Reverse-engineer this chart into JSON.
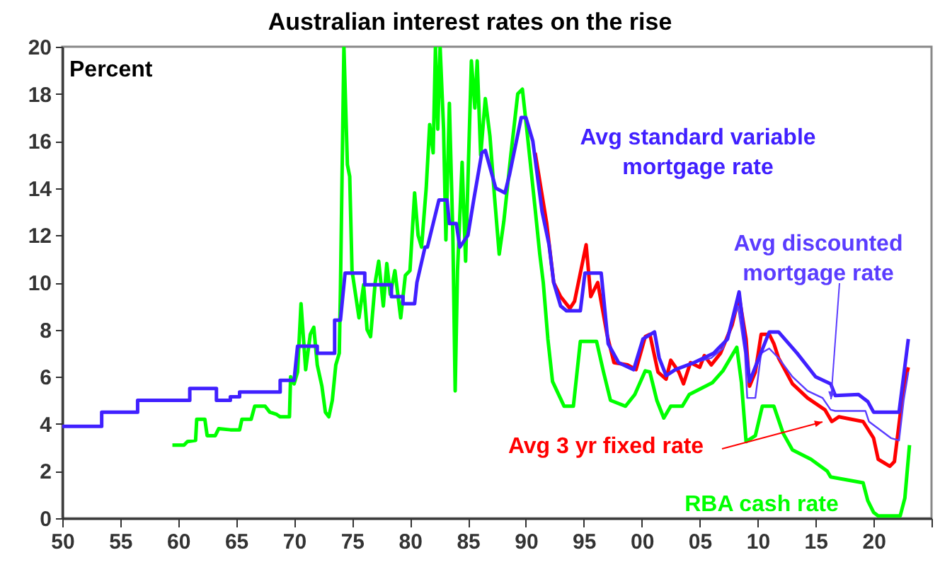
{
  "chart_data": {
    "type": "line",
    "title": "Australian interest rates on the rise",
    "ylabel": "Percent",
    "xlim": [
      1950,
      2025
    ],
    "xticks": [
      {
        "value": 1950,
        "label": "50"
      },
      {
        "value": 1955,
        "label": "55"
      },
      {
        "value": 1960,
        "label": "60"
      },
      {
        "value": 1965,
        "label": "65"
      },
      {
        "value": 1970,
        "label": "70"
      },
      {
        "value": 1975,
        "label": "75"
      },
      {
        "value": 1980,
        "label": "80"
      },
      {
        "value": 1985,
        "label": "85"
      },
      {
        "value": 1990,
        "label": "90"
      },
      {
        "value": 1995,
        "label": "95"
      },
      {
        "value": 2000,
        "label": "00"
      },
      {
        "value": 2005,
        "label": "05"
      },
      {
        "value": 2010,
        "label": "10"
      },
      {
        "value": 2015,
        "label": "15"
      },
      {
        "value": 2020,
        "label": "20"
      },
      {
        "value": 2025,
        "label": null
      }
    ],
    "ylim": [
      0,
      20
    ],
    "yticks": [
      0,
      2,
      4,
      6,
      8,
      10,
      12,
      14,
      16,
      18,
      20
    ],
    "series": [
      {
        "name": "Avg standard variable mortgage rate",
        "color": "#4020ff",
        "x": [
          1950,
          1953.4,
          1953.4,
          1956.5,
          1956.5,
          1961,
          1961,
          1963.3,
          1963.3,
          1964.5,
          1964.5,
          1965.3,
          1965.3,
          1968.8,
          1968.8,
          1970,
          1970.3,
          1972,
          1972,
          1973.5,
          1973.5,
          1974,
          1974.4,
          1976.1,
          1976.1,
          1978.4,
          1978.4,
          1979.4,
          1979.4,
          1980.4,
          1980.6,
          1981.3,
          1981.5,
          1982,
          1982.5,
          1983.2,
          1983.4,
          1984,
          1984.3,
          1985,
          1985.5,
          1986.2,
          1986.5,
          1987.4,
          1988.2,
          1988.6,
          1989.6,
          1990,
          1990.6,
          1991.4,
          1992,
          1992.4,
          1993,
          1993.5,
          1994.7,
          1995.1,
          1996.5,
          1997.1,
          1998,
          1999.3,
          2000.1,
          2001.1,
          2001.5,
          2002.1,
          2002.9,
          2004.5,
          2006.2,
          2007.4,
          2008.4,
          2009.3,
          2011,
          2011.8,
          2013.4,
          2015,
          2016.3,
          2016.7,
          2018.7,
          2019.5,
          2020,
          2022.2,
          2023
        ],
        "values": [
          3.9,
          3.9,
          4.5,
          4.5,
          5.0,
          5.0,
          5.5,
          5.5,
          5.0,
          5.0,
          5.15,
          5.15,
          5.35,
          5.35,
          5.85,
          5.85,
          7.3,
          7.3,
          7.0,
          7.0,
          8.4,
          8.4,
          10.4,
          10.4,
          9.9,
          9.9,
          9.4,
          9.4,
          9.1,
          9.1,
          10.0,
          11.5,
          11.5,
          12.5,
          13.5,
          13.5,
          12.5,
          12.5,
          11.5,
          12.0,
          13.5,
          15.5,
          15.6,
          14.0,
          13.8,
          14.6,
          17.0,
          17.0,
          16.0,
          13.0,
          11.6,
          10.0,
          9.0,
          8.8,
          8.8,
          10.4,
          10.4,
          7.4,
          6.6,
          6.3,
          7.6,
          7.9,
          6.8,
          6.05,
          6.3,
          6.6,
          7.0,
          7.6,
          9.6,
          5.8,
          7.9,
          7.9,
          7.0,
          6.0,
          5.7,
          5.2,
          5.25,
          4.95,
          4.5,
          4.5,
          7.6
        ]
      },
      {
        "name": "Avg discounted mortgage rate",
        "color": "#5a3cff",
        "x": [
          2004.5,
          2006,
          2007,
          2008.3,
          2008.9,
          2009.1,
          2009.8,
          2010.3,
          2011,
          2011.8,
          2013,
          2014.3,
          2015.6,
          2016.3,
          2016.7,
          2019.3,
          2019.6,
          2021.5,
          2022.2,
          2022.6,
          2023
        ],
        "values": [
          6.6,
          6.8,
          7.2,
          9.0,
          7.0,
          5.1,
          5.1,
          7.0,
          7.2,
          6.8,
          6.0,
          5.4,
          5.1,
          4.6,
          4.55,
          4.55,
          4.1,
          3.4,
          3.3,
          5.0,
          6.2
        ]
      },
      {
        "name": "Avg 3 yr fixed rate",
        "color": "#ff0000",
        "x": [
          1990.8,
          1991.3,
          1991.8,
          1992.4,
          1993.0,
          1993.8,
          1994.2,
          1995.2,
          1995.6,
          1996.2,
          1997.0,
          1997.6,
          1998.8,
          1999.5,
          2000.3,
          2000.7,
          2001.4,
          2002.1,
          2002.5,
          2003.2,
          2003.6,
          2004.2,
          2005.0,
          2005.4,
          2006.0,
          2006.8,
          2007.8,
          2008.4,
          2009.0,
          2009.3,
          2009.8,
          2010.3,
          2011.0,
          2011.4,
          2011.8,
          2013.0,
          2014.3,
          2015.8,
          2016.4,
          2017.0,
          2019.1,
          2020.0,
          2020.4,
          2021.4,
          2021.8,
          2022.6,
          2023.0
        ],
        "values": [
          15.5,
          14.0,
          12.5,
          10.0,
          9.4,
          8.9,
          9.2,
          11.6,
          9.4,
          10.0,
          7.8,
          6.6,
          6.5,
          6.3,
          7.7,
          7.8,
          6.2,
          5.9,
          6.7,
          6.2,
          5.7,
          6.6,
          6.4,
          6.9,
          6.5,
          7.0,
          8.2,
          9.4,
          7.6,
          5.6,
          6.2,
          7.8,
          7.8,
          7.4,
          6.8,
          5.7,
          5.1,
          4.6,
          4.1,
          4.3,
          4.1,
          3.4,
          2.5,
          2.2,
          2.4,
          5.6,
          6.4
        ]
      },
      {
        "name": "RBA cash rate",
        "color": "#00ff00",
        "x": [
          1959.5,
          1960.5,
          1960.8,
          1961.5,
          1961.6,
          1962.3,
          1962.5,
          1963.2,
          1963.5,
          1964.5,
          1965.3,
          1965.5,
          1966.3,
          1966.6,
          1967.5,
          1967.9,
          1968.5,
          1968.8,
          1969.6,
          1969.7,
          1970.0,
          1970.3,
          1970.6,
          1971.0,
          1971.4,
          1971.7,
          1972.0,
          1972.4,
          1972.7,
          1973.0,
          1973.3,
          1973.6,
          1973.9,
          1974.0,
          1974.3,
          1974.6,
          1974.8,
          1975.0,
          1975.3,
          1975.6,
          1976.0,
          1976.3,
          1976.6,
          1977.0,
          1977.3,
          1977.7,
          1978.0,
          1978.3,
          1978.7,
          1979.2,
          1979.6,
          1980.0,
          1980.4,
          1980.7,
          1981.0,
          1981.4,
          1981.7,
          1982.0,
          1982.2,
          1982.4,
          1982.6,
          1982.9,
          1983.1,
          1983.4,
          1983.7,
          1983.9,
          1984.1,
          1984.5,
          1984.8,
          1985.3,
          1985.6,
          1985.8,
          1986.1,
          1986.5,
          1986.9,
          1987.3,
          1987.7,
          1988.1,
          1988.7,
          1989.3,
          1989.7,
          1990.1,
          1990.7,
          1991.2,
          1991.5,
          1991.9,
          1992.3,
          1993.3,
          1994.1,
          1994.7,
          1996.1,
          1996.7,
          1997.3,
          1998.6,
          1999.4,
          2000.3,
          2000.7,
          2001.3,
          2001.9,
          2002.5,
          2003.5,
          2004.1,
          2006.1,
          2007.0,
          2008.2,
          2008.6,
          2009.0,
          2009.8,
          2010.4,
          2011.4,
          2012.2,
          2013.0,
          2014.6,
          2016.0,
          2016.3,
          2019.1,
          2019.5,
          2020.0,
          2020.4,
          2022.3,
          2022.7,
          2023.1
        ],
        "values": [
          3.1,
          3.1,
          3.25,
          3.3,
          4.2,
          4.2,
          3.5,
          3.5,
          3.8,
          3.75,
          3.75,
          4.2,
          4.2,
          4.75,
          4.75,
          4.5,
          4.4,
          4.3,
          4.3,
          6.0,
          5.7,
          6.2,
          9.1,
          6.3,
          7.8,
          8.1,
          6.5,
          5.6,
          4.5,
          4.3,
          5.0,
          6.5,
          7.0,
          9.7,
          20.0,
          15.0,
          14.5,
          10.5,
          9.5,
          8.5,
          9.9,
          8.0,
          7.7,
          10.0,
          10.9,
          9.0,
          10.8,
          9.5,
          10.5,
          8.5,
          10.3,
          10.5,
          13.8,
          12.0,
          11.5,
          14.0,
          16.7,
          15.5,
          20.0,
          16.5,
          20.0,
          16.5,
          11.8,
          17.6,
          12.0,
          5.4,
          10.5,
          15.1,
          10.9,
          19.4,
          17.4,
          19.4,
          15.4,
          17.8,
          16.2,
          13.6,
          11.2,
          12.6,
          15.4,
          18.0,
          18.2,
          16.4,
          13.6,
          11.2,
          10.0,
          7.6,
          5.8,
          4.75,
          4.75,
          7.5,
          7.5,
          6.2,
          5.0,
          4.75,
          5.25,
          6.25,
          6.2,
          5.0,
          4.25,
          4.75,
          4.75,
          5.25,
          5.75,
          6.25,
          7.25,
          5.75,
          3.25,
          3.5,
          4.75,
          4.75,
          3.6,
          2.9,
          2.5,
          2.0,
          1.75,
          1.5,
          0.75,
          0.25,
          0.1,
          0.1,
          0.85,
          3.1
        ]
      }
    ]
  }
}
